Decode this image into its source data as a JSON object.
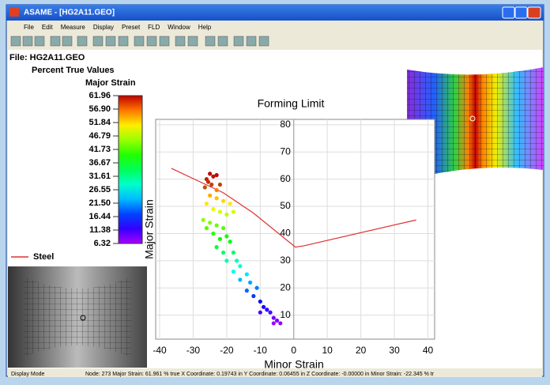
{
  "window": {
    "title": "ASAME - [HG2A11.GEO]",
    "menu": [
      "File",
      "Edit",
      "Measure",
      "Display",
      "Preset",
      "FLD",
      "Window",
      "Help"
    ]
  },
  "file_label": "File: HG2A11.GEO",
  "values_label": "Percent True Values",
  "colorbar": {
    "title": "Major Strain",
    "ticks": [
      61.96,
      {
        "value": 56.9,
        "label": "56.90"
      },
      51.84,
      46.79,
      41.73,
      36.67,
      31.61,
      26.55,
      {
        "value": 21.5,
        "label": "21.50"
      },
      16.44,
      11.38,
      6.32
    ]
  },
  "chart_data": {
    "type": "scatter",
    "title": "Forming Limit",
    "x_label": "Minor Strain",
    "y_label": "Major Strain",
    "xlim": [
      -40,
      42
    ],
    "ylim": [
      0,
      82
    ],
    "xticks": [
      -40,
      -30,
      -20,
      -10,
      0,
      10,
      20,
      30,
      40
    ],
    "yticks": [
      10,
      20,
      30,
      40,
      50,
      60,
      70,
      80
    ],
    "grid": true,
    "series": [
      {
        "name": "Steel",
        "type": "line",
        "color": "#e03030",
        "x": [
          -36.5,
          -21,
          -12,
          0.5,
          3,
          36.5
        ],
        "values": [
          64,
          55,
          47.5,
          35,
          35.5,
          45
        ]
      },
      {
        "type": "scatter",
        "x": [
          -25,
          -24,
          -26,
          -23,
          -25.5,
          -24.5,
          -26.5,
          -23,
          -22,
          -25,
          -23,
          -21,
          -19,
          -26,
          -24,
          -22,
          -20,
          -18,
          -27,
          -25,
          -23,
          -21,
          -26,
          -24,
          -22,
          -20,
          -19,
          -23,
          -21,
          -18,
          -17,
          -20,
          -16,
          -18,
          -14,
          -16,
          -13,
          -11,
          -14,
          -12,
          -10,
          -9,
          -8,
          -7,
          -10,
          -6,
          -5,
          -4,
          -6
        ],
        "values": [
          62,
          61,
          60,
          61.5,
          59,
          58,
          57,
          56,
          58,
          54,
          53,
          52,
          51,
          51,
          49,
          48,
          47,
          48,
          45,
          44,
          43,
          42,
          42,
          40,
          38,
          39,
          37,
          35,
          33,
          33,
          30,
          30,
          28,
          26,
          25,
          23,
          22,
          20,
          19,
          17,
          15,
          13,
          12,
          11,
          11,
          9,
          8,
          7,
          7
        ]
      }
    ]
  },
  "status": {
    "mode": "Display Mode",
    "node": "Node: 273   Major Strain: 61.961 % true   X Coordinate: 0.19743 in   Y Coordinate: 0.06455 in   Z Coordinate: -0.00000 in   Minor Strain: -22.345 % tr"
  }
}
